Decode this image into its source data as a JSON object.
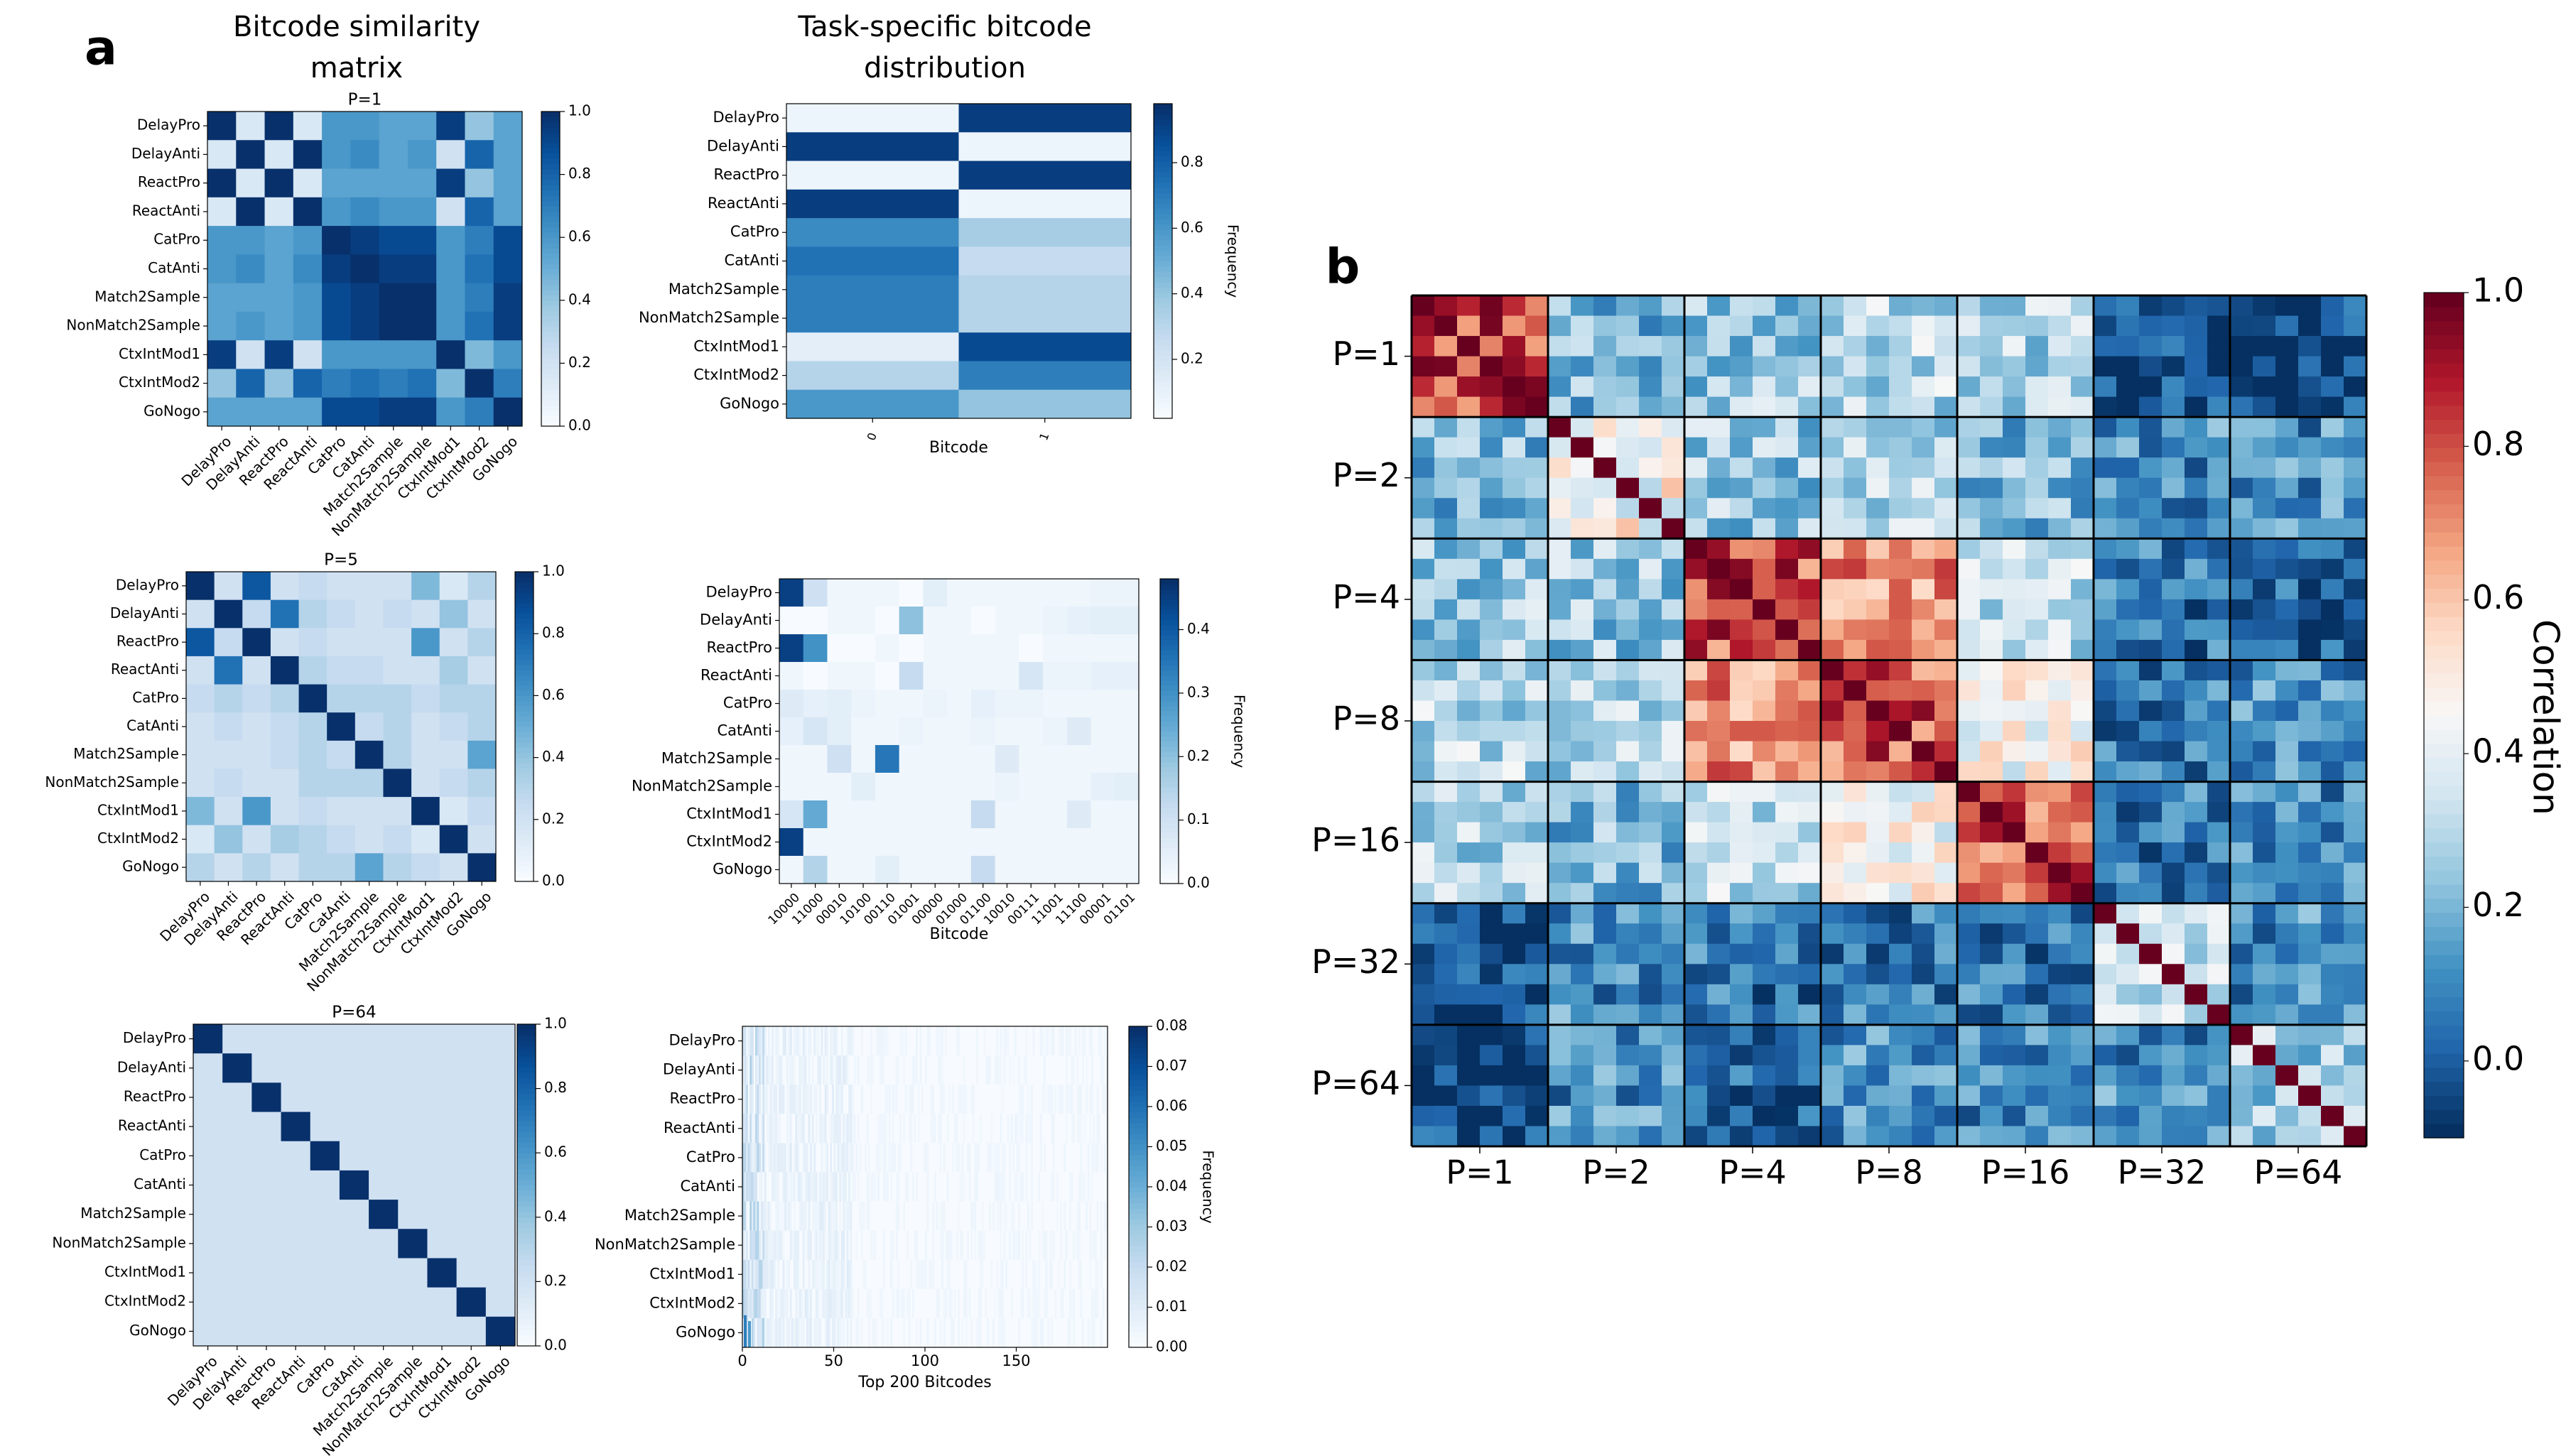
{
  "panel_labels": {
    "a": "a",
    "b": "b"
  },
  "column_titles": {
    "similarity": [
      "Bitcode similarity",
      "matrix"
    ],
    "distribution": [
      "Task-specific bitcode",
      "distribution"
    ]
  },
  "tasks": [
    "DelayPro",
    "DelayAnti",
    "ReactPro",
    "ReactAnti",
    "CatPro",
    "CatAnti",
    "Match2Sample",
    "NonMatch2Sample",
    "CtxIntMod1",
    "CtxIntMod2",
    "GoNogo"
  ],
  "colors": {
    "blues_low": "#f7fbff",
    "blues_high": "#08306b",
    "grid_line": "#000000",
    "rdbu_low": "#053061",
    "rdbu_mid": "#f7f7f7",
    "rdbu_high": "#67001f"
  },
  "chart_data": [
    {
      "id": "sim_p1",
      "type": "heatmap",
      "title": "P=1",
      "categories": [
        "DelayPro",
        "DelayAnti",
        "ReactPro",
        "ReactAnti",
        "CatPro",
        "CatAnti",
        "Match2Sample",
        "NonMatch2Sample",
        "CtxIntMod1",
        "CtxIntMod2",
        "GoNogo"
      ],
      "colorbar": {
        "ticks": [
          "0.0",
          "0.2",
          "0.4",
          "0.6",
          "0.8",
          "1.0"
        ],
        "vmin": 0,
        "vmax": 1
      },
      "values": [
        [
          1.0,
          0.15,
          1.0,
          0.15,
          0.6,
          0.6,
          0.55,
          0.55,
          0.95,
          0.4,
          0.55
        ],
        [
          0.15,
          1.0,
          0.15,
          1.0,
          0.6,
          0.65,
          0.55,
          0.6,
          0.2,
          0.8,
          0.55
        ],
        [
          1.0,
          0.15,
          1.0,
          0.15,
          0.55,
          0.55,
          0.55,
          0.55,
          0.95,
          0.4,
          0.55
        ],
        [
          0.15,
          1.0,
          0.15,
          1.0,
          0.6,
          0.65,
          0.6,
          0.6,
          0.2,
          0.8,
          0.55
        ],
        [
          0.6,
          0.6,
          0.55,
          0.6,
          1.0,
          0.95,
          0.9,
          0.9,
          0.6,
          0.7,
          0.9
        ],
        [
          0.6,
          0.65,
          0.55,
          0.65,
          0.95,
          1.0,
          0.95,
          0.95,
          0.6,
          0.75,
          0.9
        ],
        [
          0.55,
          0.55,
          0.55,
          0.6,
          0.9,
          0.95,
          1.0,
          1.0,
          0.6,
          0.7,
          0.95
        ],
        [
          0.55,
          0.6,
          0.55,
          0.6,
          0.9,
          0.95,
          1.0,
          1.0,
          0.6,
          0.75,
          0.95
        ],
        [
          0.95,
          0.2,
          0.95,
          0.2,
          0.6,
          0.6,
          0.6,
          0.6,
          1.0,
          0.45,
          0.6
        ],
        [
          0.4,
          0.8,
          0.4,
          0.8,
          0.7,
          0.75,
          0.7,
          0.75,
          0.45,
          1.0,
          0.7
        ],
        [
          0.55,
          0.55,
          0.55,
          0.55,
          0.9,
          0.9,
          0.95,
          0.95,
          0.6,
          0.7,
          1.0
        ]
      ]
    },
    {
      "id": "dist_p1",
      "type": "heatmap",
      "title": "",
      "rows": [
        "DelayPro",
        "DelayAnti",
        "ReactPro",
        "ReactAnti",
        "CatPro",
        "CatAnti",
        "Match2Sample",
        "NonMatch2Sample",
        "CtxIntMod1",
        "CtxIntMod2",
        "GoNogo"
      ],
      "x_ticks": [
        "0",
        "1"
      ],
      "xlabel": "Bitcode",
      "clabel": "Frequency",
      "colorbar": {
        "ticks": [
          "0.2",
          "0.4",
          "0.6",
          "0.8"
        ],
        "vmin": 0.0,
        "vmax": 1.0
      },
      "values": [
        [
          0.05,
          0.95
        ],
        [
          0.95,
          0.05
        ],
        [
          0.05,
          0.95
        ],
        [
          0.95,
          0.05
        ],
        [
          0.65,
          0.35
        ],
        [
          0.75,
          0.25
        ],
        [
          0.7,
          0.3
        ],
        [
          0.7,
          0.3
        ],
        [
          0.1,
          0.9
        ],
        [
          0.3,
          0.7
        ],
        [
          0.6,
          0.4
        ]
      ]
    },
    {
      "id": "sim_p5",
      "type": "heatmap",
      "title": "P=5",
      "categories": [
        "DelayPro",
        "DelayAnti",
        "ReactPro",
        "ReactAnti",
        "CatPro",
        "CatAnti",
        "Match2Sample",
        "NonMatch2Sample",
        "CtxIntMod1",
        "CtxIntMod2",
        "GoNogo"
      ],
      "colorbar": {
        "ticks": [
          "0.0",
          "0.2",
          "0.4",
          "0.6",
          "0.8",
          "1.0"
        ],
        "vmin": 0,
        "vmax": 1
      },
      "values": [
        [
          1.0,
          0.2,
          0.85,
          0.2,
          0.25,
          0.2,
          0.2,
          0.2,
          0.45,
          0.15,
          0.3
        ],
        [
          0.2,
          1.0,
          0.25,
          0.75,
          0.3,
          0.25,
          0.2,
          0.25,
          0.2,
          0.4,
          0.2
        ],
        [
          0.85,
          0.25,
          1.0,
          0.2,
          0.25,
          0.2,
          0.2,
          0.2,
          0.6,
          0.2,
          0.3
        ],
        [
          0.2,
          0.75,
          0.2,
          1.0,
          0.3,
          0.25,
          0.25,
          0.2,
          0.2,
          0.35,
          0.2
        ],
        [
          0.25,
          0.3,
          0.25,
          0.3,
          1.0,
          0.3,
          0.3,
          0.3,
          0.25,
          0.3,
          0.3
        ],
        [
          0.2,
          0.25,
          0.2,
          0.25,
          0.3,
          1.0,
          0.25,
          0.3,
          0.2,
          0.25,
          0.3
        ],
        [
          0.2,
          0.2,
          0.2,
          0.25,
          0.3,
          0.25,
          1.0,
          0.3,
          0.2,
          0.2,
          0.55
        ],
        [
          0.2,
          0.25,
          0.2,
          0.2,
          0.3,
          0.3,
          0.3,
          1.0,
          0.2,
          0.25,
          0.3
        ],
        [
          0.45,
          0.2,
          0.6,
          0.2,
          0.25,
          0.2,
          0.2,
          0.2,
          1.0,
          0.15,
          0.25
        ],
        [
          0.15,
          0.4,
          0.2,
          0.35,
          0.3,
          0.25,
          0.2,
          0.25,
          0.15,
          1.0,
          0.2
        ],
        [
          0.3,
          0.2,
          0.3,
          0.2,
          0.3,
          0.3,
          0.55,
          0.3,
          0.25,
          0.2,
          1.0
        ]
      ]
    },
    {
      "id": "dist_p5",
      "type": "heatmap",
      "title": "",
      "rows": [
        "DelayPro",
        "DelayAnti",
        "ReactPro",
        "ReactAnti",
        "CatPro",
        "CatAnti",
        "Match2Sample",
        "NonMatch2Sample",
        "CtxIntMod1",
        "CtxIntMod2",
        "GoNogo"
      ],
      "x_ticks": [
        "10000",
        "11000",
        "00010",
        "10100",
        "00110",
        "01001",
        "00000",
        "01000",
        "01100",
        "10010",
        "00111",
        "11001",
        "11100",
        "00001",
        "01101"
      ],
      "xlabel": "Bitcode",
      "clabel": "Frequency",
      "colorbar": {
        "ticks": [
          "0.0",
          "0.1",
          "0.2",
          "0.3",
          "0.4"
        ],
        "vmin": 0.0,
        "vmax": 0.48
      },
      "values": [
        [
          0.45,
          0.1,
          0.02,
          0.02,
          0.02,
          0.0,
          0.05,
          0.02,
          0.02,
          0.02,
          0.02,
          0.02,
          0.02,
          0.03,
          0.03
        ],
        [
          0.0,
          0.0,
          0.02,
          0.02,
          0.0,
          0.2,
          0.02,
          0.02,
          0.0,
          0.02,
          0.02,
          0.03,
          0.04,
          0.05,
          0.05
        ],
        [
          0.45,
          0.3,
          0.0,
          0.0,
          0.02,
          0.0,
          0.02,
          0.02,
          0.02,
          0.02,
          0.0,
          0.02,
          0.02,
          0.02,
          0.02
        ],
        [
          0.02,
          0.0,
          0.02,
          0.02,
          0.0,
          0.12,
          0.02,
          0.02,
          0.02,
          0.02,
          0.08,
          0.03,
          0.03,
          0.04,
          0.04
        ],
        [
          0.06,
          0.04,
          0.05,
          0.03,
          0.02,
          0.02,
          0.03,
          0.02,
          0.04,
          0.03,
          0.03,
          0.02,
          0.02,
          0.02,
          0.02
        ],
        [
          0.04,
          0.08,
          0.05,
          0.02,
          0.02,
          0.03,
          0.02,
          0.02,
          0.03,
          0.02,
          0.02,
          0.03,
          0.06,
          0.02,
          0.02
        ],
        [
          0.02,
          0.02,
          0.1,
          0.02,
          0.35,
          0.02,
          0.02,
          0.02,
          0.02,
          0.06,
          0.02,
          0.02,
          0.02,
          0.02,
          0.02
        ],
        [
          0.02,
          0.02,
          0.02,
          0.05,
          0.02,
          0.02,
          0.02,
          0.02,
          0.02,
          0.03,
          0.02,
          0.02,
          0.02,
          0.04,
          0.05
        ],
        [
          0.08,
          0.25,
          0.02,
          0.02,
          0.02,
          0.02,
          0.02,
          0.02,
          0.12,
          0.02,
          0.02,
          0.02,
          0.06,
          0.02,
          0.02
        ],
        [
          0.45,
          0.02,
          0.02,
          0.02,
          0.02,
          0.02,
          0.02,
          0.02,
          0.02,
          0.02,
          0.02,
          0.02,
          0.02,
          0.02,
          0.02
        ],
        [
          0.02,
          0.15,
          0.02,
          0.02,
          0.05,
          0.02,
          0.02,
          0.02,
          0.12,
          0.02,
          0.02,
          0.02,
          0.02,
          0.02,
          0.02
        ]
      ]
    },
    {
      "id": "sim_p64",
      "type": "heatmap",
      "title": "P=64",
      "categories": [
        "DelayPro",
        "DelayAnti",
        "ReactPro",
        "ReactAnti",
        "CatPro",
        "CatAnti",
        "Match2Sample",
        "NonMatch2Sample",
        "CtxIntMod1",
        "CtxIntMod2",
        "GoNogo"
      ],
      "colorbar": {
        "ticks": [
          "0.0",
          "0.2",
          "0.4",
          "0.6",
          "0.8",
          "1.0"
        ],
        "vmin": 0,
        "vmax": 1
      },
      "offdiag_value": 0.2,
      "diag_value": 1.0
    },
    {
      "id": "dist_p64",
      "type": "heatmap",
      "title": "",
      "rows": [
        "DelayPro",
        "DelayAnti",
        "ReactPro",
        "ReactAnti",
        "CatPro",
        "CatAnti",
        "Match2Sample",
        "NonMatch2Sample",
        "CtxIntMod1",
        "CtxIntMod2",
        "GoNogo"
      ],
      "x_range": [
        0,
        200
      ],
      "x_ticks": [
        "0",
        "50",
        "100",
        "150"
      ],
      "xlabel": "Top 200 Bitcodes",
      "clabel": "Frequency",
      "colorbar": {
        "ticks": [
          "0.00",
          "0.01",
          "0.02",
          "0.03",
          "0.04",
          "0.05",
          "0.06",
          "0.07",
          "0.08"
        ],
        "vmin": 0.0,
        "vmax": 0.08
      }
    },
    {
      "id": "corr_b",
      "type": "heatmap",
      "title": "",
      "groups": [
        "P=1",
        "P=2",
        "P=4",
        "P=8",
        "P=16",
        "P=32",
        "P=64"
      ],
      "clabel": "Correlation",
      "colorbar": {
        "ticks": [
          "0.0",
          "0.2",
          "0.4",
          "0.6",
          "0.8",
          "1.0"
        ],
        "vmin": -0.1,
        "vmax": 1.0
      },
      "within_group_mean": [
        0.85,
        0.45,
        0.8,
        0.8,
        0.75,
        0.3,
        0.3
      ],
      "between_group_mean": [
        [
          0.85,
          0.2,
          0.25,
          0.3,
          0.3,
          -0.05,
          -0.05
        ],
        [
          0.2,
          0.45,
          0.25,
          0.3,
          0.2,
          0.1,
          0.1
        ],
        [
          0.25,
          0.25,
          0.8,
          0.7,
          0.3,
          0.05,
          0.0
        ],
        [
          0.3,
          0.3,
          0.7,
          0.8,
          0.45,
          0.05,
          0.1
        ],
        [
          0.3,
          0.2,
          0.3,
          0.45,
          0.75,
          0.05,
          0.1
        ],
        [
          -0.05,
          0.1,
          0.05,
          0.05,
          0.05,
          0.3,
          0.1
        ],
        [
          -0.05,
          0.1,
          0.0,
          0.1,
          0.1,
          0.1,
          0.3
        ]
      ]
    }
  ]
}
